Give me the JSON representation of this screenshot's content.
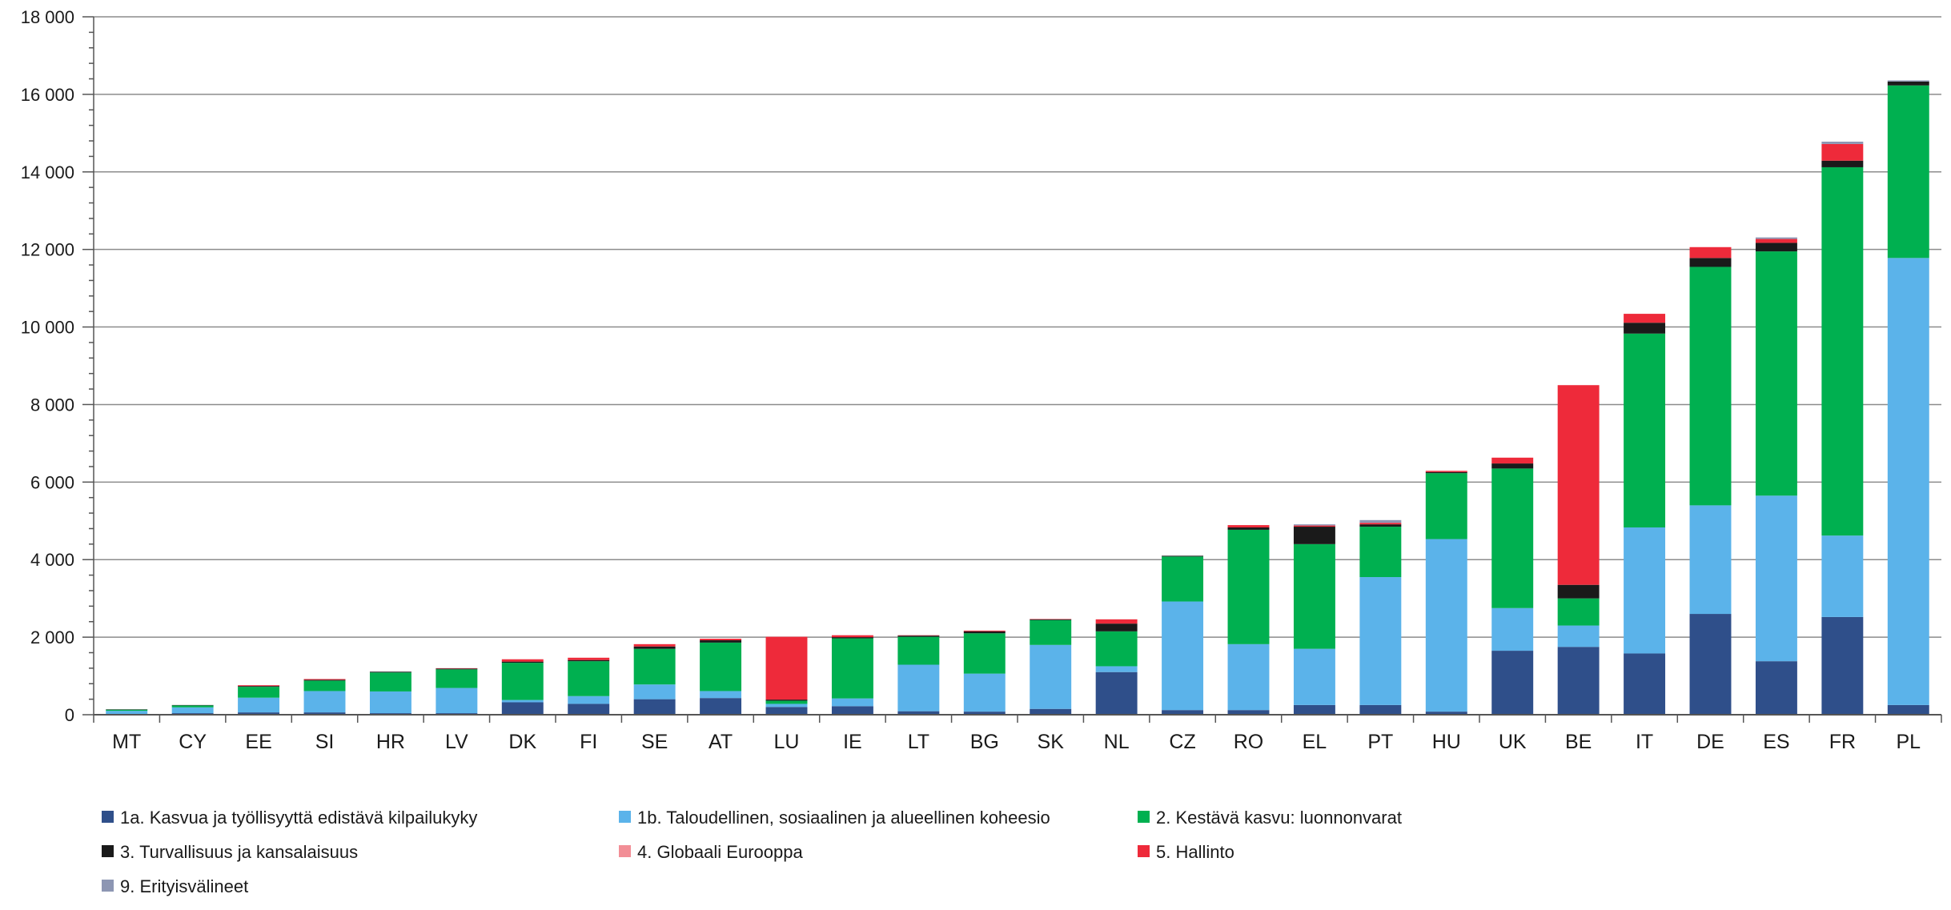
{
  "chart_data": {
    "type": "bar",
    "stacked": true,
    "title": "",
    "xlabel": "",
    "ylabel": "",
    "ylim": [
      0,
      18000
    ],
    "y_ticks": [
      0,
      2000,
      4000,
      6000,
      8000,
      10000,
      12000,
      14000,
      16000,
      18000
    ],
    "y_tick_labels": [
      "0",
      "2 000",
      "4 000",
      "6 000",
      "8 000",
      "10 000",
      "12 000",
      "14 000",
      "16 000",
      "18 000"
    ],
    "grid": true,
    "legend_position": "bottom",
    "categories": [
      "MT",
      "CY",
      "EE",
      "SI",
      "HR",
      "LV",
      "DK",
      "FI",
      "SE",
      "AT",
      "LU",
      "IE",
      "LT",
      "BG",
      "SK",
      "NL",
      "CZ",
      "RO",
      "EL",
      "PT",
      "HU",
      "UK",
      "BE",
      "IT",
      "DE",
      "ES",
      "FR",
      "PL"
    ],
    "series": [
      {
        "name": "1a. Kasvua ja työllisyyttä edistävä kilpailukyky",
        "color": "#2f4f8a",
        "values": [
          20,
          40,
          60,
          60,
          40,
          40,
          320,
          280,
          400,
          430,
          200,
          220,
          90,
          80,
          150,
          1100,
          120,
          120,
          250,
          250,
          80,
          1650,
          1750,
          1580,
          2600,
          1380,
          2520,
          250
        ]
      },
      {
        "name": "1b. Taloudellinen, sosiaalinen ja alueellinen koheesio",
        "color": "#5bb3ea",
        "values": [
          80,
          150,
          380,
          550,
          560,
          650,
          60,
          200,
          380,
          180,
          80,
          200,
          1200,
          980,
          1650,
          150,
          2800,
          1700,
          1450,
          3300,
          4450,
          1100,
          550,
          3250,
          2800,
          4270,
          2100,
          11530
        ]
      },
      {
        "name": "2. Kestävä kasvu: luonnonvarat",
        "color": "#00b050",
        "values": [
          30,
          50,
          280,
          270,
          490,
          480,
          960,
          900,
          920,
          1250,
          80,
          1550,
          720,
          1040,
          640,
          900,
          1160,
          2950,
          2700,
          1300,
          1700,
          3600,
          700,
          5000,
          6150,
          6300,
          9500,
          4450
        ]
      },
      {
        "name": "3. Turvallisuus ja kansalaisuus",
        "color": "#1a1a1a",
        "values": [
          10,
          10,
          20,
          20,
          20,
          20,
          30,
          30,
          60,
          60,
          30,
          30,
          30,
          50,
          20,
          200,
          20,
          60,
          450,
          60,
          30,
          130,
          350,
          280,
          230,
          220,
          170,
          100
        ]
      },
      {
        "name": "4. Globaali Eurooppa",
        "color": "#f28e96",
        "values": [
          0,
          0,
          0,
          0,
          0,
          0,
          0,
          0,
          0,
          0,
          0,
          0,
          0,
          0,
          0,
          0,
          0,
          0,
          0,
          0,
          0,
          0,
          0,
          0,
          0,
          0,
          0,
          0
        ]
      },
      {
        "name": "5. Hallinto",
        "color": "#ee2a3a",
        "values": [
          0,
          0,
          20,
          20,
          0,
          10,
          60,
          60,
          60,
          40,
          1620,
          50,
          10,
          20,
          10,
          110,
          0,
          60,
          30,
          40,
          30,
          150,
          5150,
          230,
          280,
          100,
          430,
          0
        ]
      },
      {
        "name": "9. Erityisvälineet",
        "color": "#8d96b3",
        "values": [
          0,
          0,
          0,
          0,
          0,
          0,
          0,
          0,
          0,
          0,
          0,
          0,
          0,
          0,
          0,
          0,
          0,
          0,
          30,
          70,
          0,
          0,
          0,
          0,
          0,
          40,
          60,
          30
        ]
      }
    ]
  }
}
